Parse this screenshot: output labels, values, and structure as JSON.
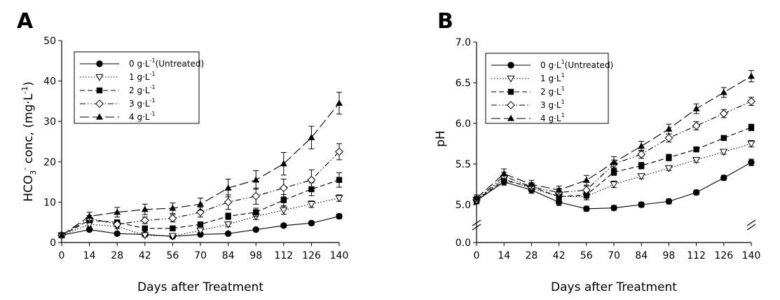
{
  "chart_data": [
    {
      "type": "line",
      "panel_label": "A",
      "xlabel": "Days after Treatment",
      "ylabel": "HCO3- conc, (mg·L-1)",
      "ylabel_parts": {
        "main": "HCO",
        "sub": "3",
        "sup": "-",
        "rest": " conc, (mg·L",
        "sup2": "-1",
        "close": ")"
      },
      "x": [
        0,
        14,
        28,
        42,
        56,
        70,
        84,
        98,
        112,
        126,
        140
      ],
      "xlim": [
        0,
        140
      ],
      "xticks": [
        "0",
        "14",
        "28",
        "42",
        "56",
        "70",
        "84",
        "98",
        "112",
        "126",
        "140"
      ],
      "ylim": [
        0,
        50
      ],
      "yticks": [
        "0",
        "10",
        "20",
        "30",
        "40",
        "50"
      ],
      "yticks_values": [
        0,
        10,
        20,
        30,
        40,
        50
      ],
      "legend_position": "top-left",
      "series": [
        {
          "name": "0 g·L-1(Untreated)",
          "base": "0 g·L",
          "sup": "-1",
          "suffix": "(Untreated)",
          "marker": "filled-circle",
          "dash": "solid",
          "values": [
            1.8,
            3.2,
            2.2,
            2.0,
            1.5,
            2.0,
            2.2,
            3.2,
            4.2,
            4.8,
            6.5
          ],
          "errors": [
            0.3,
            0.4,
            0.3,
            0.3,
            0.3,
            0.3,
            0.3,
            0.4,
            0.4,
            0.5,
            0.6
          ]
        },
        {
          "name": "1 g·L-1",
          "base": "1 g·L",
          "sup": "-1",
          "suffix": "",
          "marker": "open-triangle-down",
          "dash": "dotted",
          "values": [
            1.8,
            4.5,
            4.0,
            1.8,
            1.6,
            3.0,
            4.5,
            6.5,
            8.0,
            9.5,
            11.0
          ],
          "errors": [
            0.3,
            0.5,
            0.5,
            0.4,
            0.4,
            0.5,
            0.6,
            0.8,
            1.0,
            0.8,
            0.8
          ]
        },
        {
          "name": "2 g·L-1",
          "base": "2 g·L",
          "sup": "-1",
          "suffix": "",
          "marker": "filled-square",
          "dash": "dashed",
          "values": [
            1.8,
            5.5,
            5.0,
            3.5,
            3.5,
            4.5,
            6.5,
            7.5,
            10.5,
            13.2,
            15.5
          ],
          "errors": [
            0.3,
            0.6,
            0.6,
            0.5,
            0.5,
            0.6,
            0.8,
            1.0,
            1.4,
            1.6,
            1.8
          ]
        },
        {
          "name": "3 g·L-1",
          "base": "3 g·L",
          "sup": "-1",
          "suffix": "",
          "marker": "open-diamond",
          "dash": "dash-dot-dot",
          "values": [
            1.8,
            6.0,
            4.5,
            5.5,
            6.0,
            7.5,
            10.0,
            11.5,
            13.5,
            15.5,
            22.5
          ],
          "errors": [
            0.3,
            0.7,
            0.6,
            0.8,
            0.9,
            1.2,
            1.8,
            2.0,
            2.2,
            2.5,
            2.0
          ]
        },
        {
          "name": "4 g·L-1",
          "base": "4 g·L",
          "sup": "-1",
          "suffix": "",
          "marker": "filled-triangle-up",
          "dash": "long-dash",
          "values": [
            1.8,
            6.5,
            7.5,
            8.2,
            8.5,
            9.5,
            13.5,
            15.5,
            19.5,
            26.0,
            34.5
          ],
          "errors": [
            0.3,
            1.0,
            1.2,
            1.3,
            1.3,
            1.5,
            2.2,
            2.3,
            2.8,
            2.8,
            2.7
          ]
        }
      ]
    },
    {
      "type": "line",
      "panel_label": "B",
      "xlabel": "Days after Treatment",
      "ylabel": "pH",
      "x": [
        0,
        14,
        28,
        42,
        56,
        70,
        84,
        98,
        112,
        126,
        140
      ],
      "xlim": [
        0,
        140
      ],
      "xticks": [
        "0",
        "14",
        "28",
        "42",
        "56",
        "70",
        "84",
        "98",
        "112",
        "126",
        "140"
      ],
      "ylim": [
        4.5,
        7.0
      ],
      "axis_break": true,
      "yticks": [
        "0.0",
        "5.0",
        "5.5",
        "6.0",
        "6.5",
        "7.0"
      ],
      "yticks_values": [
        0,
        5.0,
        5.5,
        6.0,
        6.5,
        7.0
      ],
      "legend_position": "top-left",
      "series": [
        {
          "name": "0 g·L1(Untreated)",
          "base": "0 g·L",
          "sup": "1",
          "suffix": "(Untreated)",
          "marker": "filled-circle",
          "dash": "solid",
          "values": [
            5.05,
            5.28,
            5.18,
            5.03,
            4.95,
            4.96,
            5.0,
            5.04,
            5.15,
            5.33,
            5.52
          ],
          "errors": [
            0.04,
            0.04,
            0.04,
            0.04,
            0.03,
            0.03,
            0.03,
            0.03,
            0.03,
            0.03,
            0.04
          ]
        },
        {
          "name": "1 g·L1",
          "base": "1 g·L",
          "sup": "1",
          "suffix": "",
          "marker": "open-triangle-down",
          "dash": "dotted",
          "values": [
            5.06,
            5.32,
            5.2,
            5.1,
            5.1,
            5.25,
            5.35,
            5.45,
            5.55,
            5.65,
            5.75
          ],
          "errors": [
            0.04,
            0.04,
            0.04,
            0.04,
            0.04,
            0.04,
            0.03,
            0.03,
            0.03,
            0.03,
            0.04
          ]
        },
        {
          "name": "2 g·L1",
          "base": "2 g·L",
          "sup": "1",
          "suffix": "",
          "marker": "filled-square",
          "dash": "dashed",
          "values": [
            5.06,
            5.3,
            5.22,
            5.1,
            5.12,
            5.4,
            5.48,
            5.58,
            5.68,
            5.82,
            5.95
          ],
          "errors": [
            0.04,
            0.04,
            0.04,
            0.04,
            0.04,
            0.04,
            0.04,
            0.04,
            0.03,
            0.03,
            0.04
          ]
        },
        {
          "name": "3 g·L1",
          "base": "3 g·L",
          "sup": "1",
          "suffix": "",
          "marker": "open-diamond",
          "dash": "dash-dot-dot",
          "values": [
            5.06,
            5.35,
            5.22,
            5.15,
            5.18,
            5.5,
            5.62,
            5.82,
            5.97,
            6.12,
            6.27
          ],
          "errors": [
            0.04,
            0.05,
            0.05,
            0.05,
            0.05,
            0.05,
            0.05,
            0.05,
            0.05,
            0.05,
            0.05
          ]
        },
        {
          "name": "4 g·L1",
          "base": "4 g·L",
          "sup": "1",
          "suffix": "",
          "marker": "filled-triangle-up",
          "dash": "long-dash",
          "values": [
            5.08,
            5.38,
            5.25,
            5.18,
            5.3,
            5.52,
            5.72,
            5.93,
            6.18,
            6.38,
            6.58
          ],
          "errors": [
            0.04,
            0.06,
            0.05,
            0.05,
            0.06,
            0.07,
            0.06,
            0.06,
            0.06,
            0.06,
            0.07
          ]
        }
      ]
    }
  ]
}
